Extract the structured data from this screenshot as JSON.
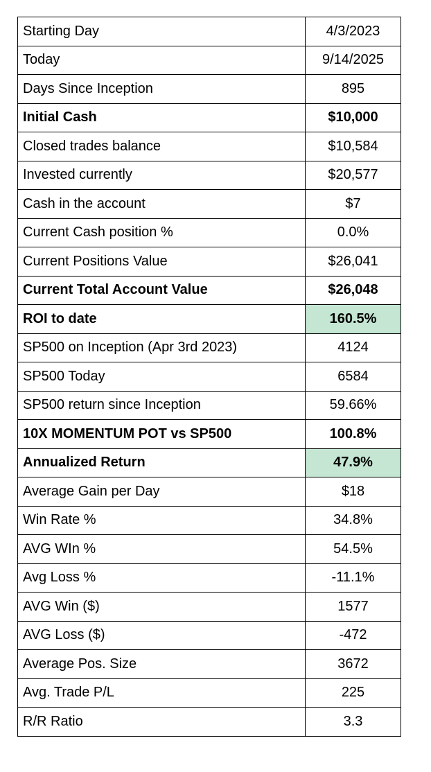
{
  "table": {
    "rows": [
      [
        "Starting Day",
        "4/3/2023"
      ],
      [
        "Today",
        "9/14/2025"
      ],
      [
        "Days Since Inception",
        "895"
      ],
      [
        "Initial Cash",
        "$10,000"
      ],
      [
        "Closed trades balance",
        "$10,584"
      ],
      [
        "Invested currently",
        "$20,577"
      ],
      [
        "Cash in the account",
        "$7"
      ],
      [
        "Current Cash position %",
        "0.0%"
      ],
      [
        "Current Positions Value",
        "$26,041"
      ],
      [
        "Current Total Account Value",
        "$26,048"
      ],
      [
        "ROI to date",
        "160.5%"
      ],
      [
        "SP500 on Inception (Apr 3rd 2023)",
        "4124"
      ],
      [
        "SP500 Today",
        "6584"
      ],
      [
        "SP500 return since Inception",
        "59.66%"
      ],
      [
        "10X MOMENTUM POT vs SP500",
        "100.8%"
      ],
      [
        "Annualized Return",
        "47.9%"
      ],
      [
        "Average Gain per Day",
        "$18"
      ],
      [
        "Win Rate %",
        "34.8%"
      ],
      [
        "AVG WIn %",
        "54.5%"
      ],
      [
        "Avg Loss %",
        "-11.1%"
      ],
      [
        "AVG Win ($)",
        "1577"
      ],
      [
        "AVG Loss ($)",
        "-472"
      ],
      [
        "Average Pos. Size",
        "3672"
      ],
      [
        "Avg. Trade P/L",
        "225"
      ],
      [
        "R/R Ratio",
        "3.3"
      ]
    ]
  }
}
